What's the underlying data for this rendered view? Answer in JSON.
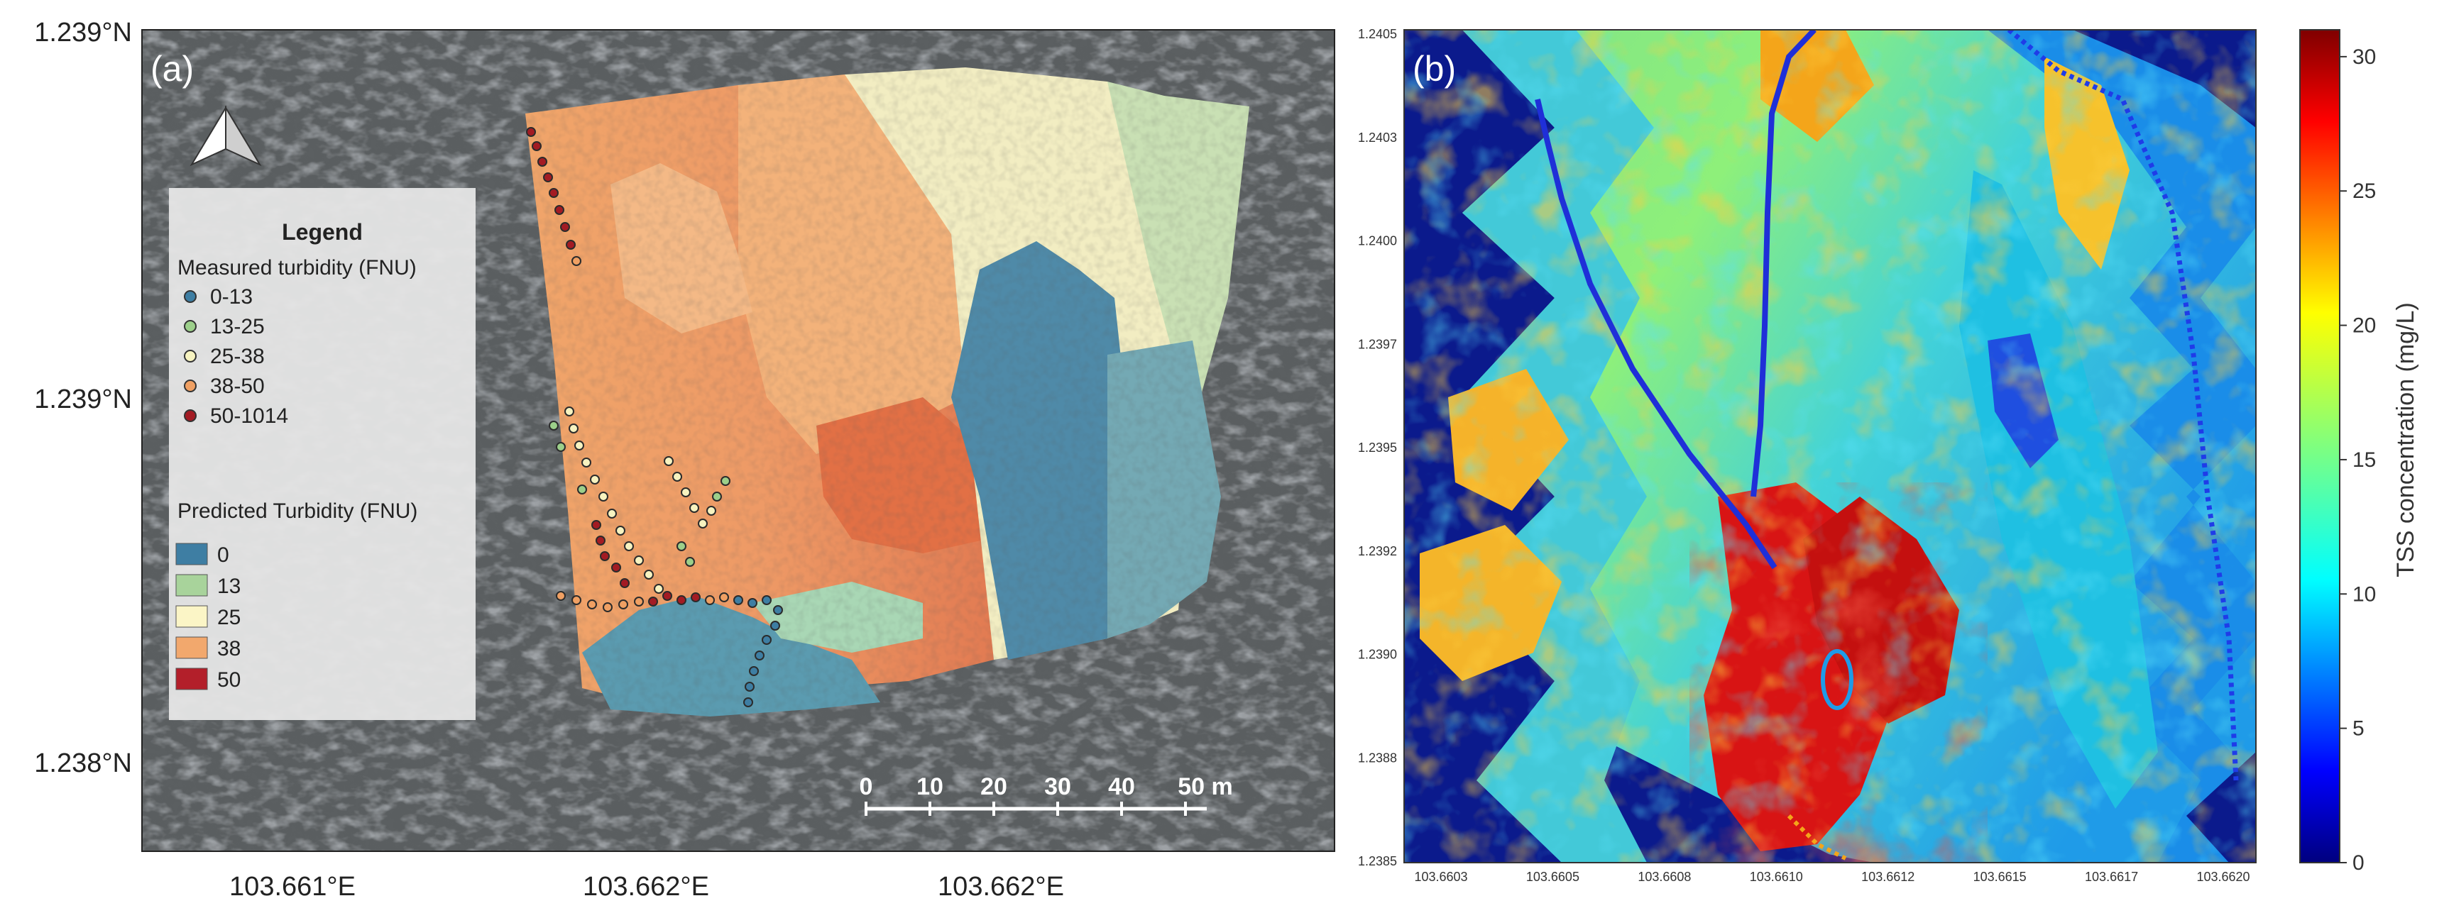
{
  "panel_a": {
    "label": "(a)",
    "lat_ticks": [
      "1.239°N",
      "1.239°N",
      "1.238°N"
    ],
    "lon_ticks": [
      "103.661°E",
      "103.662°E",
      "103.662°E"
    ],
    "legend": {
      "title": "Legend",
      "measured_title": "Measured turbidity (FNU)",
      "measured_items": [
        {
          "label": "0-13",
          "color": "#3e7ea3"
        },
        {
          "label": "13-25",
          "color": "#9ccf8a"
        },
        {
          "label": "25-38",
          "color": "#f7f3c0"
        },
        {
          "label": "38-50",
          "color": "#f0a063"
        },
        {
          "label": "50-1014",
          "color": "#a31b23"
        }
      ],
      "predicted_title": "Predicted Turbidity (FNU)",
      "predicted_items": [
        {
          "label": "0",
          "color": "#3e7ea3"
        },
        {
          "label": "13",
          "color": "#a8d39b"
        },
        {
          "label": "25",
          "color": "#fbf5c6"
        },
        {
          "label": "38",
          "color": "#f2a86d"
        },
        {
          "label": "50",
          "color": "#b31f2a"
        }
      ]
    },
    "scale_bar": {
      "ticks": [
        "0",
        "10",
        "20",
        "30",
        "40",
        "50 m"
      ]
    },
    "north_arrow": "north-arrow-icon"
  },
  "panel_b": {
    "label": "(b)",
    "y_ticks": [
      "1.2405",
      "1.2403",
      "1.2400",
      "1.2397",
      "1.2395",
      "1.2392",
      "1.2390",
      "1.2388",
      "1.2385"
    ],
    "x_ticks": [
      "103.6603",
      "103.6605",
      "103.6608",
      "103.6610",
      "103.6612",
      "103.6615",
      "103.6617",
      "103.6620"
    ],
    "colorbar": {
      "label": "TSS concentration (mg/L)",
      "ticks": [
        "0",
        "5",
        "10",
        "15",
        "20",
        "25",
        "30"
      ],
      "range": [
        0,
        31
      ],
      "colormap": "jet"
    },
    "background_color": "#0b1a8c"
  }
}
